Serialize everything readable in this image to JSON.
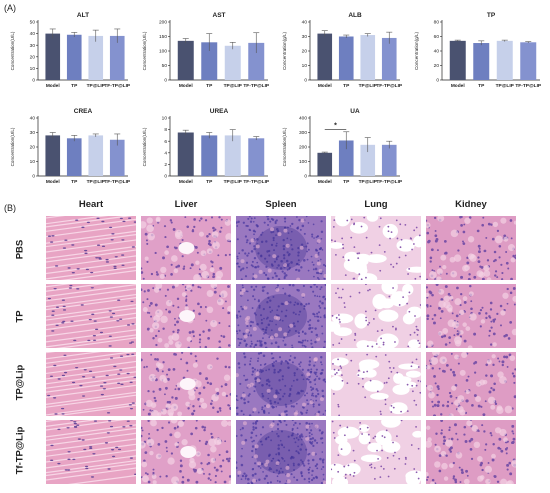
{
  "panels": {
    "a": "(A)",
    "b": "(B)"
  },
  "histology": {
    "columns": [
      "Heart",
      "Liver",
      "Spleen",
      "Lung",
      "Kidney"
    ],
    "rows": [
      "PBS",
      "TP",
      "TP@Lip",
      "Tf-TP@Lip"
    ],
    "tissue_colors": {
      "Heart": "#e8a4c4",
      "Liver": "#e0a0c8",
      "Spleen": "#9a78c0",
      "Lung": "#f0d0e4",
      "Kidney": "#de9cc4"
    }
  },
  "chart_data": [
    {
      "type": "bar",
      "title": "ALT",
      "ylabel": "Concentration(U/L)",
      "categories": [
        "Model",
        "TP",
        "TP@LIP",
        "TF-TP@LIP"
      ],
      "values": [
        40,
        39,
        38,
        38
      ],
      "errors": [
        4,
        2,
        5,
        6
      ],
      "ylim": [
        0,
        50
      ],
      "yticks": [
        0,
        10,
        20,
        30,
        40,
        50
      ]
    },
    {
      "type": "bar",
      "title": "AST",
      "ylabel": "Concentration(U/L)",
      "categories": [
        "Model",
        "TP",
        "TP@LIP",
        "TF-TP@LIP"
      ],
      "values": [
        135,
        130,
        118,
        128
      ],
      "errors": [
        8,
        30,
        12,
        35
      ],
      "ylim": [
        0,
        200
      ],
      "yticks": [
        0,
        50,
        100,
        150,
        200
      ]
    },
    {
      "type": "bar",
      "title": "ALB",
      "ylabel": "Concentration(g/L)",
      "categories": [
        "Model",
        "TP",
        "TP@LIP",
        "TF-TP@LIP"
      ],
      "values": [
        32,
        30,
        31,
        29
      ],
      "errors": [
        2,
        1,
        1,
        4
      ],
      "ylim": [
        0,
        40
      ],
      "yticks": [
        0,
        10,
        20,
        30,
        40
      ]
    },
    {
      "type": "bar",
      "title": "TP",
      "ylabel": "Concentration(g/L)",
      "categories": [
        "Model",
        "TP",
        "TP@LIP",
        "TF-TP@LIP"
      ],
      "values": [
        54,
        51,
        54,
        52
      ],
      "errors": [
        1,
        3,
        1,
        1
      ],
      "ylim": [
        0,
        80
      ],
      "yticks": [
        0,
        20,
        40,
        60,
        80
      ]
    },
    {
      "type": "bar",
      "title": "CREA",
      "ylabel": "Concentration(U/L)",
      "categories": [
        "Model",
        "TP",
        "TP@LIP",
        "TF-TP@LIP"
      ],
      "values": [
        28,
        26,
        28,
        25
      ],
      "errors": [
        2,
        2,
        1,
        4
      ],
      "ylim": [
        0,
        40
      ],
      "yticks": [
        0,
        10,
        20,
        30,
        40
      ]
    },
    {
      "type": "bar",
      "title": "UREA",
      "ylabel": "Concentration(U/L)",
      "categories": [
        "Model",
        "TP",
        "TP@LIP",
        "TF-TP@LIP"
      ],
      "values": [
        7.5,
        7.0,
        7.0,
        6.5
      ],
      "errors": [
        0.4,
        0.5,
        1.0,
        0.3
      ],
      "ylim": [
        0,
        10
      ],
      "yticks": [
        0,
        2,
        4,
        6,
        8,
        10
      ]
    },
    {
      "type": "bar",
      "title": "UA",
      "ylabel": "Concentration(U/L)",
      "categories": [
        "Model",
        "TP",
        "TP@LIP",
        "TF-TP@LIP"
      ],
      "values": [
        160,
        245,
        215,
        215
      ],
      "errors": [
        5,
        60,
        50,
        25
      ],
      "ylim": [
        0,
        400
      ],
      "yticks": [
        0,
        100,
        200,
        300,
        400
      ],
      "annotation": "*"
    }
  ]
}
